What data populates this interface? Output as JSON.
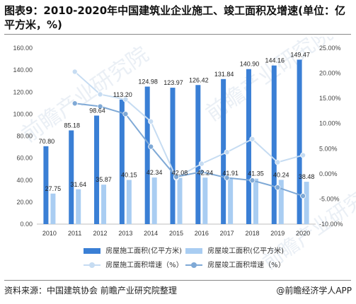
{
  "title": "图表9：2010-2020年中国建筑业企业施工、竣工面积及增速(单位：亿平方米，%)",
  "source": "资料来源：中国建筑协会 前瞻产业研究院整理",
  "brand": "@前瞻经济学人APP",
  "watermark": "前瞻产业研究院",
  "colors": {
    "construction_bar": "#3a7fd5",
    "completion_bar": "#a9cdf2",
    "construction_growth": "#c6dcf2",
    "completion_growth": "#7fa9d6"
  },
  "chart_data": {
    "type": "bar",
    "categories": [
      "2010",
      "2011",
      "2012",
      "2013",
      "2014",
      "2015",
      "2016",
      "2017",
      "2018",
      "2019",
      "2020"
    ],
    "series": [
      {
        "name": "房屋施工面积(亿平方米)",
        "type": "bar",
        "axis": "left",
        "values": [
          70.8,
          85.18,
          98.64,
          113.2,
          124.98,
          123.97,
          126.42,
          131.84,
          140.9,
          144.16,
          149.47
        ]
      },
      {
        "name": "房屋竣工面积(亿平方米)",
        "type": "bar",
        "axis": "left",
        "values": [
          27.75,
          31.64,
          35.87,
          40.15,
          42.34,
          42.08,
          42.24,
          41.91,
          41.35,
          40.24,
          38.48
        ]
      },
      {
        "name": "房屋施工面积增速（%）",
        "type": "line",
        "axis": "right",
        "values": [
          null,
          20.3,
          15.8,
          14.8,
          10.4,
          -0.8,
          2.0,
          4.3,
          6.9,
          2.3,
          3.7
        ]
      },
      {
        "name": "房屋竣工面积增速（%）",
        "type": "line",
        "axis": "right",
        "values": [
          null,
          14.0,
          13.4,
          11.9,
          5.4,
          -0.6,
          0.4,
          -0.8,
          -1.3,
          -2.7,
          -4.4
        ]
      }
    ],
    "y_left": {
      "min": 0,
      "max": 160,
      "ticks": [
        "0.00",
        "20.00",
        "40.00",
        "60.00",
        "80.00",
        "100.00",
        "120.00",
        "140.00",
        "160.00"
      ]
    },
    "y_right": {
      "min": -10,
      "max": 25,
      "ticks": [
        "-10.00%",
        "-5.00%",
        "0.00%",
        "5.00%",
        "10.00%",
        "15.00%",
        "20.00%",
        "25.00%"
      ]
    },
    "grid": false,
    "legend_position": "bottom"
  }
}
